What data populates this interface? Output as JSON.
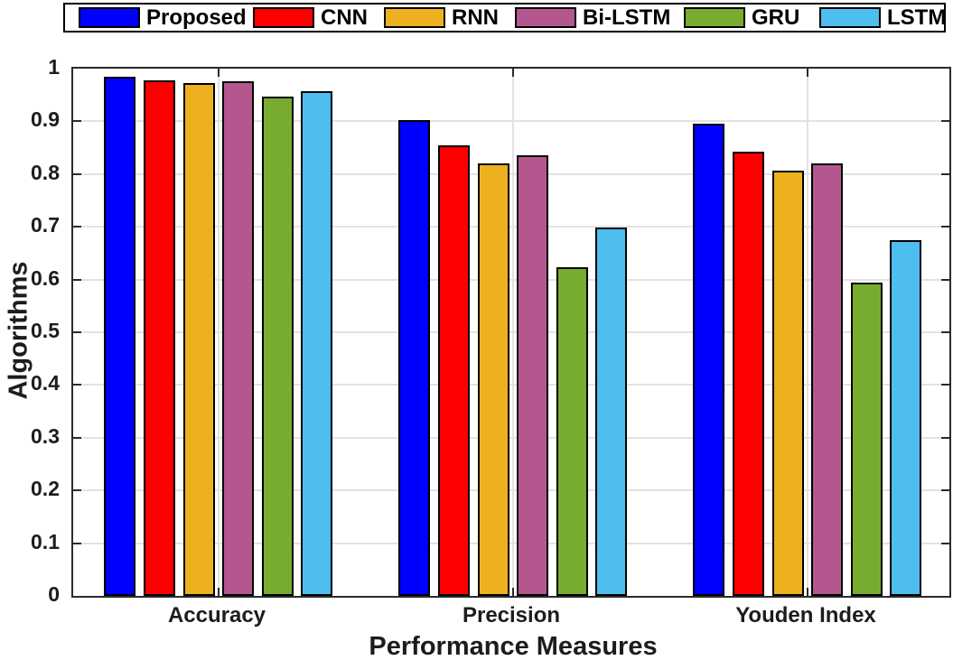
{
  "chart_data": {
    "type": "bar",
    "title": "",
    "xlabel": "Performance Measures",
    "ylabel": "Algorithms",
    "categories": [
      "Accuracy",
      "Precision",
      "Youden Index"
    ],
    "series": [
      {
        "name": "Proposed",
        "color": "#0000FF",
        "values": [
          0.985,
          0.902,
          0.895
        ]
      },
      {
        "name": "CNN",
        "color": "#FF0000",
        "values": [
          0.978,
          0.854,
          0.843
        ]
      },
      {
        "name": "RNN",
        "color": "#EDB120",
        "values": [
          0.973,
          0.82,
          0.806
        ]
      },
      {
        "name": "Bi-LSTM",
        "color": "#B4578F",
        "values": [
          0.976,
          0.835,
          0.821
        ]
      },
      {
        "name": "GRU",
        "color": "#77AC30",
        "values": [
          0.947,
          0.624,
          0.594
        ]
      },
      {
        "name": "LSTM",
        "color": "#4DBEEE",
        "values": [
          0.957,
          0.698,
          0.674
        ]
      }
    ],
    "ylim": [
      0,
      1
    ],
    "yticks": [
      0,
      0.1,
      0.2,
      0.3,
      0.4,
      0.5,
      0.6,
      0.7,
      0.8,
      0.9,
      1
    ],
    "ytick_labels": [
      "0",
      "0.1",
      "0.2",
      "0.3",
      "0.4",
      "0.5",
      "0.6",
      "0.7",
      "0.8",
      "0.9",
      "1"
    ],
    "grid": "on",
    "legend_position": "top-horizontal",
    "bar_edge_color": "#000000",
    "axis_color": "#2b2b2b",
    "grid_color": "#e2e2e2",
    "background_color": "#ffffff"
  }
}
